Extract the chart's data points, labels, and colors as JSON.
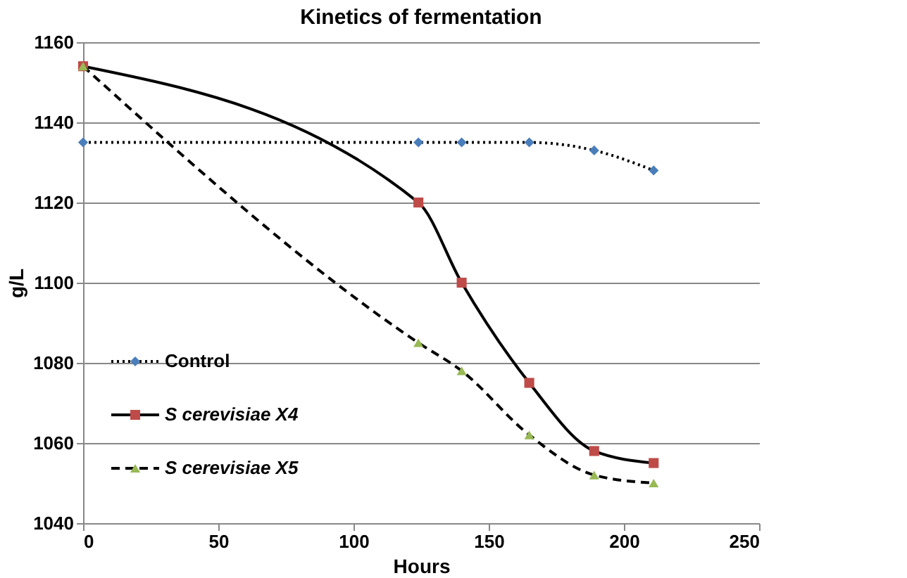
{
  "chart_data": {
    "type": "line",
    "title": "Kinetics of fermentation",
    "xlabel": "Hours",
    "ylabel": "g/L",
    "xlim": [
      0,
      250
    ],
    "xticks": [
      0,
      50,
      100,
      150,
      200,
      250
    ],
    "ylim": [
      1040,
      1160
    ],
    "yticks": [
      1040,
      1060,
      1080,
      1100,
      1120,
      1140,
      1160
    ],
    "grid": "y",
    "legend": "bottom left",
    "series": [
      {
        "name": "Control",
        "color": "#4a7ebb",
        "marker": "diamond",
        "line_style": "dotted",
        "x": [
          0,
          124,
          140,
          165,
          189,
          211
        ],
        "values": [
          1135,
          1135,
          1135,
          1135,
          1133,
          1128
        ]
      },
      {
        "name": "S cerevisiae X4",
        "color": "#be4b48",
        "marker": "square",
        "line_style": "solid",
        "x": [
          0,
          124,
          140,
          165,
          189,
          211
        ],
        "values": [
          1154,
          1120,
          1100,
          1075,
          1058,
          1055
        ]
      },
      {
        "name": "S cerevisiae X5",
        "color": "#98b954",
        "marker": "triangle",
        "line_style": "dashed",
        "x": [
          0,
          124,
          140,
          165,
          189,
          211
        ],
        "values": [
          1154,
          1085,
          1078,
          1062,
          1052,
          1050
        ]
      }
    ]
  }
}
